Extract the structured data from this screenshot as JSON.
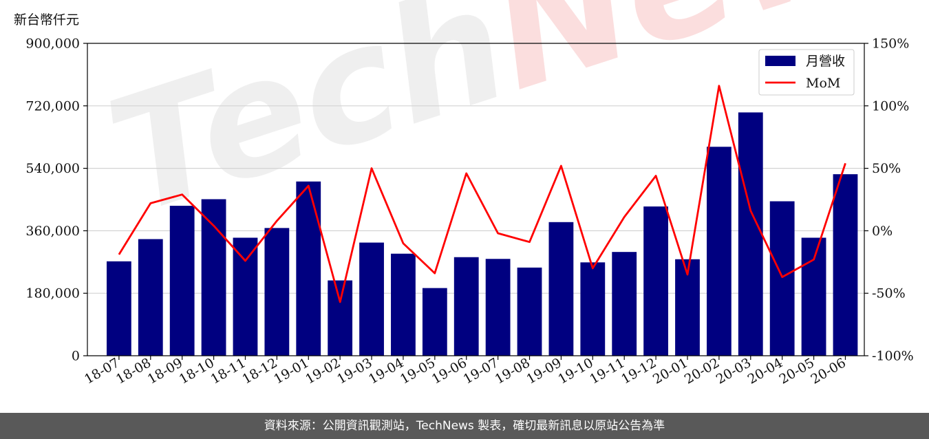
{
  "unit_label": "新台幣仟元",
  "footer_text": "資料來源：公開資訊觀測站，TechNews 製表，確切最新訊息以原站公告為準",
  "watermark": {
    "part1": "Tech",
    "part2": "News"
  },
  "colors": {
    "bar": "#000080",
    "line": "#ff0000",
    "grid": "#d3d3d3",
    "footer_bg": "#595959"
  },
  "chart_data": {
    "type": "bar",
    "categories": [
      "18-07",
      "18-08",
      "18-09",
      "18-10",
      "18-11",
      "18-12",
      "19-01",
      "19-02",
      "19-03",
      "19-04",
      "19-05",
      "19-06",
      "19-07",
      "19-08",
      "19-09",
      "19-10",
      "19-11",
      "19-12",
      "20-01",
      "20-02",
      "20-03",
      "20-04",
      "20-05",
      "20-06"
    ],
    "series": [
      {
        "name": "月營收",
        "type": "bar",
        "axis": "left",
        "values": [
          272000,
          336000,
          432000,
          451000,
          340000,
          368000,
          502000,
          217000,
          326000,
          294000,
          195000,
          284000,
          279000,
          254000,
          385000,
          269000,
          299000,
          430000,
          278000,
          602000,
          701000,
          445000,
          340000,
          523000
        ]
      },
      {
        "name": "MoM",
        "type": "line",
        "axis": "right",
        "values": [
          -19,
          22,
          29,
          4,
          -24,
          8,
          36,
          -57,
          50,
          -10,
          -34,
          46,
          -2,
          -9,
          52,
          -30,
          11,
          44,
          -35,
          116,
          16,
          -37,
          -23,
          54
        ]
      }
    ],
    "y_left": {
      "min": 0,
      "max": 900000,
      "ticks": [
        0,
        180000,
        360000,
        540000,
        720000,
        900000
      ],
      "tick_labels": [
        "0",
        "180,000",
        "360,000",
        "540,000",
        "720,000",
        "900,000"
      ]
    },
    "y_right": {
      "min": -100,
      "max": 150,
      "ticks": [
        -100,
        -50,
        0,
        50,
        100,
        150
      ],
      "tick_labels": [
        "-100%",
        "-50%",
        "0%",
        "50%",
        "100%",
        "150%"
      ]
    },
    "grid": "horizontal",
    "legend": {
      "position": "top-right",
      "entries": [
        "月營收",
        "MoM"
      ]
    }
  }
}
